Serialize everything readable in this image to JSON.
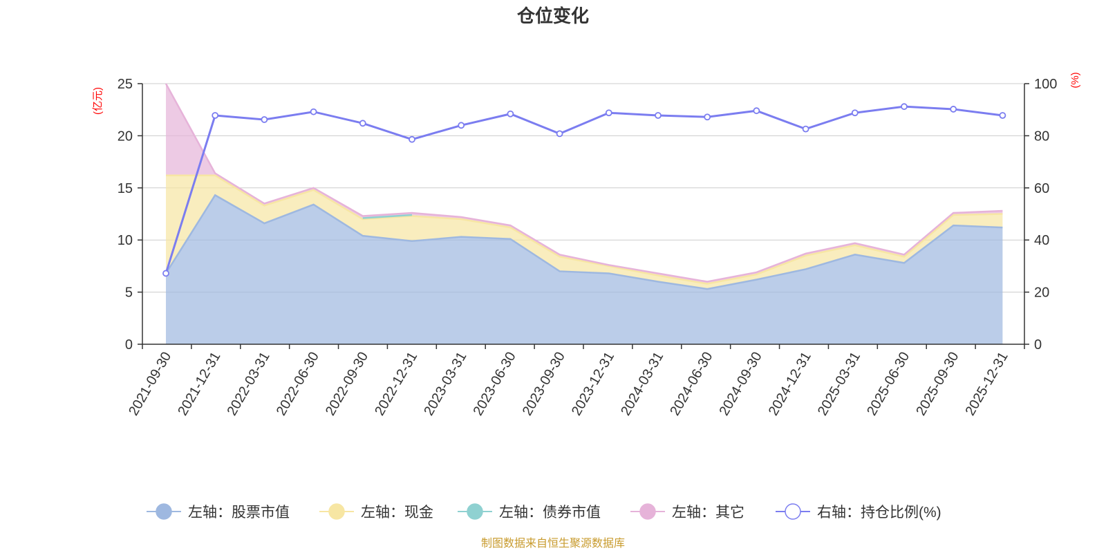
{
  "chart_data": {
    "type": "area",
    "title": "仓位变化",
    "categories": [
      "2021-09-30",
      "2021-12-31",
      "2022-03-31",
      "2022-06-30",
      "2022-09-30",
      "2022-12-31",
      "2023-03-31",
      "2023-06-30",
      "2023-09-30",
      "2023-12-31",
      "2024-03-31",
      "2024-06-30",
      "2024-09-30",
      "2024-12-31",
      "2025-03-31",
      "2025-06-30",
      "2025-09-30",
      "2025-12-31"
    ],
    "left_axis": {
      "unit": "(亿元)",
      "ylim": [
        0,
        25
      ],
      "ticks": [
        "0",
        "5",
        "10",
        "15",
        "20",
        "25"
      ]
    },
    "right_axis": {
      "unit": "(%)",
      "ylim": [
        0,
        100
      ],
      "ticks": [
        "0",
        "20",
        "40",
        "60",
        "80",
        "100"
      ]
    },
    "series": [
      {
        "name": "股票市值",
        "legend": "左轴：股票市值",
        "axis": "left",
        "type": "stacked-area",
        "values": [
          6.8,
          14.3,
          11.6,
          13.4,
          10.4,
          9.9,
          10.3,
          10.1,
          7.0,
          6.8,
          6.0,
          5.3,
          6.2,
          7.2,
          8.6,
          7.8,
          11.4,
          11.2
        ]
      },
      {
        "name": "现金",
        "legend": "左轴：现金",
        "axis": "left",
        "type": "stacked-area",
        "values": [
          9.4,
          1.9,
          1.7,
          1.4,
          1.6,
          2.4,
          1.7,
          1.1,
          1.4,
          0.7,
          0.6,
          0.5,
          0.5,
          1.3,
          0.9,
          0.6,
          1.0,
          1.3
        ]
      },
      {
        "name": "债券市值",
        "legend": "左轴：债券市值",
        "axis": "left",
        "type": "stacked-area",
        "values": [
          0,
          0,
          0,
          0,
          0.1,
          0.1,
          0,
          0,
          0,
          0,
          0,
          0,
          0,
          0,
          0,
          0,
          0,
          0
        ]
      },
      {
        "name": "其它",
        "legend": "左轴：其它",
        "axis": "left",
        "type": "stacked-area",
        "values": [
          8.8,
          0.2,
          0.2,
          0.2,
          0.2,
          0.2,
          0.2,
          0.2,
          0.2,
          0.1,
          0.2,
          0.2,
          0.2,
          0.2,
          0.2,
          0.2,
          0.2,
          0.3
        ]
      },
      {
        "name": "持仓比例(%)",
        "legend": "右轴：持仓比例(%)",
        "axis": "right",
        "type": "line",
        "values": [
          27.2,
          87.8,
          86.2,
          89.2,
          84.8,
          78.6,
          84.0,
          88.4,
          80.8,
          88.8,
          87.8,
          87.2,
          89.6,
          82.6,
          88.8,
          91.2,
          90.2,
          87.8
        ]
      }
    ],
    "colors": {
      "stock": "#9eb8e0",
      "cash": "#f7e6a3",
      "bond": "#8fd1d1",
      "other": "#e6b3d9",
      "ratio": "#7b7df0",
      "unit": "#ff0000"
    },
    "grid": true,
    "legend_position": "bottom"
  },
  "source": "制图数据来自恒生聚源数据库"
}
